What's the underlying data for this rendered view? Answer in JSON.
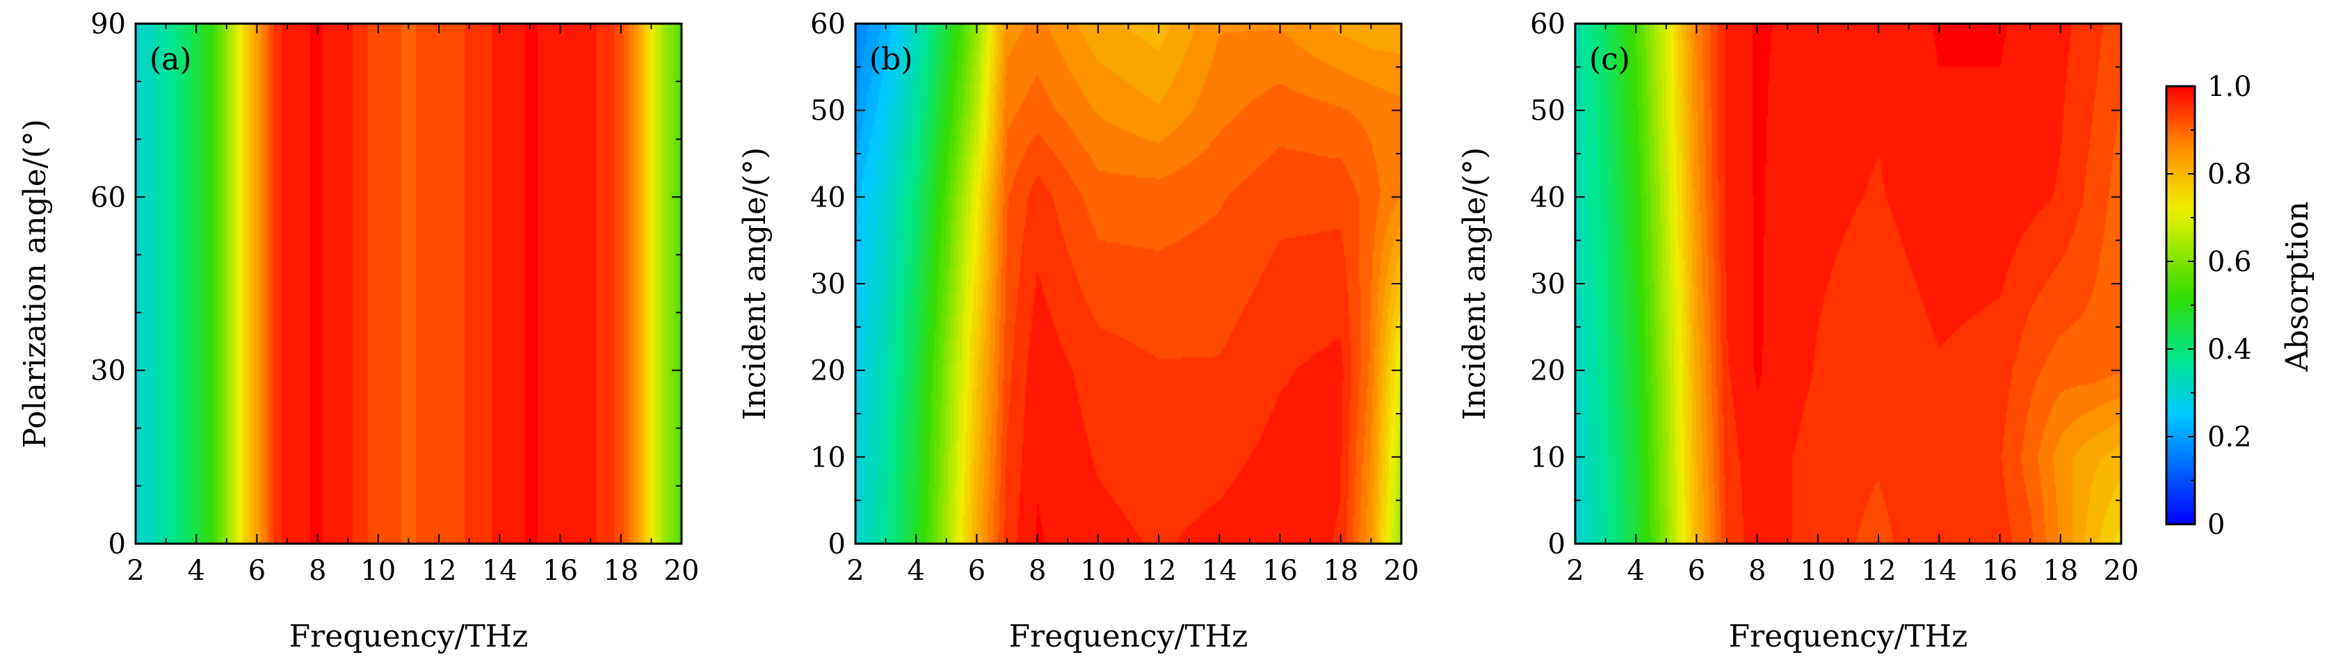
{
  "colorbar": {
    "label": "Absorption",
    "range": [
      0,
      1
    ],
    "ticks": [
      {
        "value": 0,
        "label": "0"
      },
      {
        "value": 0.2,
        "label": "0.2"
      },
      {
        "value": 0.4,
        "label": "0.4"
      },
      {
        "value": 0.6,
        "label": "0.6"
      },
      {
        "value": 0.8,
        "label": "0.8"
      },
      {
        "value": 1.0,
        "label": "1.0"
      }
    ],
    "colormap": [
      "#0000ff",
      "#00c8ff",
      "#00e68c",
      "#32dc00",
      "#f0f000",
      "#ff8c00",
      "#ff0000"
    ]
  },
  "chart_data": [
    {
      "type": "heatmap",
      "panel_label": "(a)",
      "xlabel": "Frequency/THz",
      "ylabel": "Polarization angle/(°)",
      "xlim": [
        2,
        20
      ],
      "ylim": [
        0,
        90
      ],
      "xticks": [
        "2",
        "4",
        "6",
        "8",
        "10",
        "12",
        "14",
        "16",
        "18",
        "20"
      ],
      "yticks": [
        "0",
        "30",
        "60",
        "90"
      ],
      "x": [
        2,
        3,
        4,
        4.5,
        5,
        5.5,
        6,
        6.5,
        7,
        8,
        9,
        10,
        11,
        12,
        13,
        14,
        15,
        16,
        17,
        18,
        18.5,
        19,
        19.5,
        20
      ],
      "y": [
        0,
        90
      ],
      "z": [
        [
          0.3,
          0.36,
          0.45,
          0.52,
          0.62,
          0.74,
          0.83,
          0.93,
          0.98,
          0.99,
          0.97,
          0.92,
          0.91,
          0.92,
          0.94,
          0.97,
          0.99,
          0.98,
          0.97,
          0.93,
          0.85,
          0.72,
          0.62,
          0.55
        ],
        [
          0.3,
          0.36,
          0.45,
          0.52,
          0.62,
          0.74,
          0.83,
          0.93,
          0.98,
          0.99,
          0.97,
          0.92,
          0.91,
          0.92,
          0.94,
          0.97,
          0.99,
          0.98,
          0.97,
          0.93,
          0.85,
          0.72,
          0.62,
          0.55
        ]
      ]
    },
    {
      "type": "heatmap",
      "panel_label": "(b)",
      "xlabel": "Frequency/THz",
      "ylabel": "Incident angle/(°)",
      "xlim": [
        2,
        20
      ],
      "ylim": [
        0,
        60
      ],
      "xticks": [
        "2",
        "4",
        "6",
        "8",
        "10",
        "12",
        "14",
        "16",
        "18",
        "20"
      ],
      "yticks": [
        "0",
        "10",
        "20",
        "30",
        "40",
        "50",
        "60"
      ],
      "x": [
        2,
        3,
        4,
        5,
        6,
        7,
        8,
        10,
        12,
        14,
        16,
        18,
        19,
        20
      ],
      "y": [
        0,
        20,
        40,
        50,
        60
      ],
      "z": [
        [
          0.3,
          0.37,
          0.48,
          0.64,
          0.82,
          0.95,
          0.99,
          0.97,
          0.96,
          0.97,
          0.98,
          0.96,
          0.84,
          0.62
        ],
        [
          0.27,
          0.34,
          0.45,
          0.61,
          0.78,
          0.93,
          0.98,
          0.95,
          0.94,
          0.94,
          0.96,
          0.97,
          0.88,
          0.7
        ],
        [
          0.23,
          0.3,
          0.4,
          0.55,
          0.72,
          0.91,
          0.95,
          0.9,
          0.9,
          0.91,
          0.93,
          0.93,
          0.9,
          0.86
        ],
        [
          0.19,
          0.26,
          0.36,
          0.5,
          0.66,
          0.88,
          0.9,
          0.86,
          0.84,
          0.88,
          0.9,
          0.89,
          0.88,
          0.87
        ],
        [
          0.16,
          0.22,
          0.32,
          0.46,
          0.62,
          0.85,
          0.87,
          0.82,
          0.8,
          0.86,
          0.86,
          0.83,
          0.82,
          0.82
        ]
      ]
    },
    {
      "type": "heatmap",
      "panel_label": "(c)",
      "xlabel": "Frequency/THz",
      "ylabel": "Incident angle/(°)",
      "xlim": [
        2,
        20
      ],
      "ylim": [
        0,
        60
      ],
      "xticks": [
        "2",
        "4",
        "6",
        "8",
        "10",
        "12",
        "14",
        "16",
        "18",
        "20"
      ],
      "yticks": [
        "0",
        "10",
        "20",
        "30",
        "40",
        "50",
        "60"
      ],
      "x": [
        2,
        3,
        4,
        5,
        6,
        7,
        8,
        10,
        12,
        14,
        16,
        17,
        18,
        19,
        20
      ],
      "y": [
        0,
        10,
        20,
        40,
        60
      ],
      "z": [
        [
          0.3,
          0.36,
          0.46,
          0.62,
          0.8,
          0.94,
          0.98,
          0.95,
          0.93,
          0.96,
          0.95,
          0.92,
          0.86,
          0.8,
          0.75
        ],
        [
          0.3,
          0.37,
          0.47,
          0.63,
          0.81,
          0.95,
          0.98,
          0.95,
          0.94,
          0.96,
          0.94,
          0.9,
          0.85,
          0.82,
          0.8
        ],
        [
          0.31,
          0.38,
          0.48,
          0.64,
          0.82,
          0.96,
          0.99,
          0.96,
          0.94,
          0.96,
          0.95,
          0.92,
          0.9,
          0.9,
          0.89
        ],
        [
          0.33,
          0.4,
          0.51,
          0.67,
          0.85,
          0.97,
          0.99,
          0.97,
          0.96,
          0.98,
          0.98,
          0.97,
          0.96,
          0.93,
          0.9
        ],
        [
          0.35,
          0.42,
          0.54,
          0.7,
          0.87,
          0.97,
          0.99,
          0.98,
          0.97,
          0.99,
          0.99,
          0.98,
          0.97,
          0.95,
          0.92
        ]
      ]
    }
  ]
}
